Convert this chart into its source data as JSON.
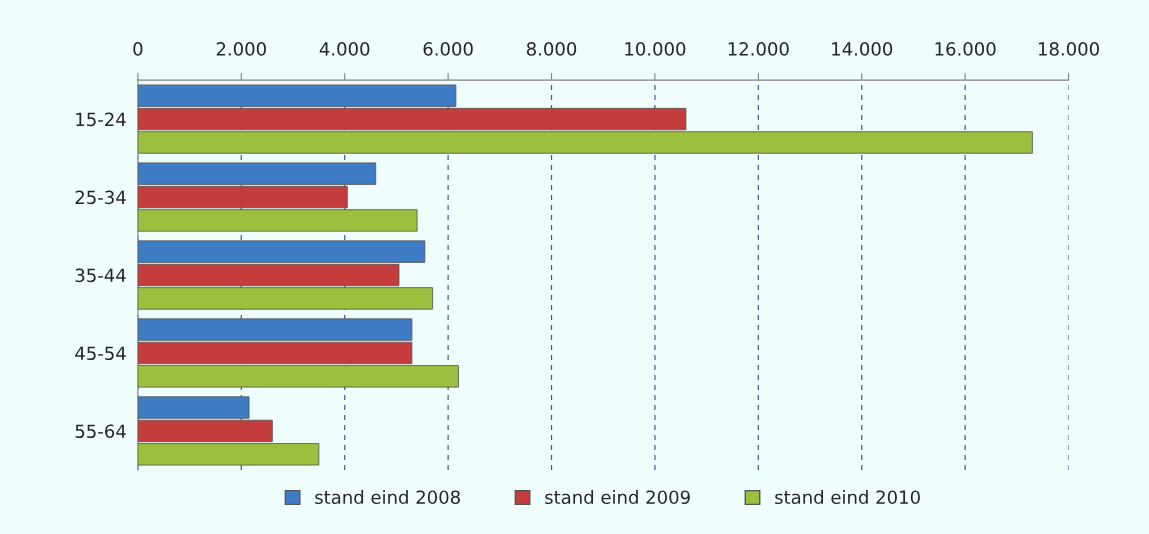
{
  "chart_data": {
    "type": "bar",
    "orientation": "horizontal",
    "categories": [
      "15-24",
      "25-34",
      "35-44",
      "45-54",
      "55-64"
    ],
    "series": [
      {
        "name": "stand eind 2008",
        "color": "#3f7cc6",
        "values": [
          6150,
          4600,
          5550,
          5300,
          2150
        ]
      },
      {
        "name": "stand eind 2009",
        "color": "#c43c3c",
        "values": [
          10600,
          4050,
          5050,
          5300,
          2600
        ]
      },
      {
        "name": "stand eind 2010",
        "color": "#9dbf3e",
        "values": [
          17300,
          5400,
          5700,
          6200,
          3500
        ]
      }
    ],
    "xlim": [
      0,
      18000
    ],
    "xticks": [
      0,
      {
        "value": 2000,
        "label": "2.000"
      },
      {
        "value": 4000,
        "label": "4.000"
      },
      {
        "value": 6000,
        "label": "6.000"
      },
      {
        "value": 8000,
        "label": "8.000"
      },
      {
        "value": 10000,
        "label": "10.000"
      },
      {
        "value": 12000,
        "label": "12.000"
      },
      {
        "value": 14000,
        "label": "14.000"
      },
      {
        "value": 16000,
        "label": "16.000"
      },
      {
        "value": 18000,
        "label": "18.000"
      }
    ],
    "grid": "x",
    "legend": "bottom"
  }
}
